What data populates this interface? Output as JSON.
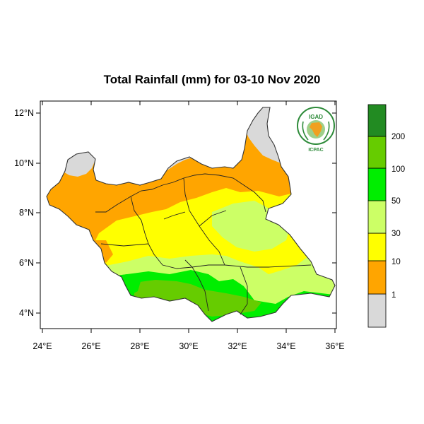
{
  "title": "Total Rainfall (mm) for 03-10 Nov 2020",
  "axes": {
    "y_ticks": [
      "4°N",
      "6°N",
      "8°N",
      "10°N",
      "12°N"
    ],
    "x_ticks": [
      "24°E",
      "26°E",
      "28°E",
      "30°E",
      "32°E",
      "34°E",
      "36°E"
    ]
  },
  "legend": {
    "labels": [
      "1",
      "10",
      "30",
      "50",
      "100",
      "200"
    ],
    "colors": [
      "#d9d9d9",
      "#ffa500",
      "#ffff00",
      "#ccff66",
      "#00ee00",
      "#66cc00",
      "#228b22"
    ]
  },
  "logo": {
    "top_text": "IGAD",
    "bottom_text": "ICPAC"
  },
  "colors": {
    "map_border": "#000000",
    "country_outline": "#333333"
  }
}
